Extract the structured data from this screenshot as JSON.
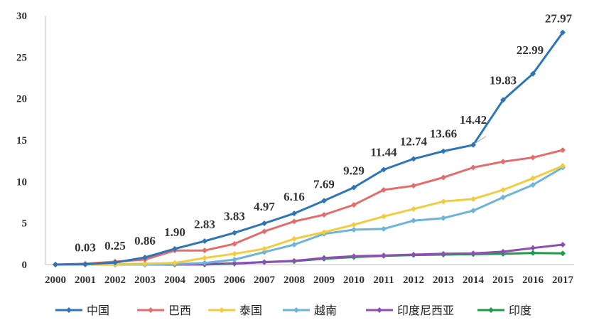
{
  "chart_data": {
    "type": "line",
    "title": "",
    "xlabel": "",
    "ylabel": "",
    "ylim": [
      0,
      30
    ],
    "yticks": [
      "0",
      "5",
      "10",
      "15",
      "20",
      "25",
      "30"
    ],
    "categories": [
      "2000",
      "2001",
      "2002",
      "2003",
      "2004",
      "2005",
      "2006",
      "2007",
      "2008",
      "2009",
      "2010",
      "2011",
      "2012",
      "2013",
      "2014",
      "2015",
      "2016",
      "2017"
    ],
    "legend_position": "bottom",
    "grid": false,
    "series": [
      {
        "name": "中国",
        "color": "#2E75B6",
        "values": [
          0.0,
          0.03,
          0.25,
          0.86,
          1.9,
          2.83,
          3.83,
          4.97,
          6.16,
          7.69,
          9.29,
          11.44,
          12.74,
          13.66,
          14.42,
          19.83,
          22.99,
          27.97
        ],
        "labels": [
          "",
          "0.03",
          "0.25",
          "0.86",
          "1.90",
          "2.83",
          "3.83",
          "4.97",
          "6.16",
          "7.69",
          "9.29",
          "11.44",
          "12.74",
          "13.66",
          "14.42",
          "19.83",
          "22.99",
          "27.97"
        ]
      },
      {
        "name": "巴西",
        "color": "#E46C6C",
        "values": [
          0.0,
          0.1,
          0.35,
          0.6,
          1.7,
          1.7,
          2.5,
          4.0,
          5.2,
          6.0,
          7.2,
          9.0,
          9.5,
          10.5,
          11.7,
          12.4,
          12.9,
          13.8
        ]
      },
      {
        "name": "泰国",
        "color": "#F2CC40",
        "values": [
          0.0,
          0.0,
          0.05,
          0.1,
          0.2,
          0.8,
          1.3,
          1.9,
          3.1,
          3.9,
          4.8,
          5.8,
          6.7,
          7.6,
          7.9,
          9.0,
          10.4,
          11.9
        ]
      },
      {
        "name": "越南",
        "color": "#6DB4D8",
        "values": [
          0.0,
          0.0,
          0.0,
          0.0,
          0.05,
          0.2,
          0.6,
          1.5,
          2.4,
          3.7,
          4.2,
          4.3,
          5.3,
          5.6,
          6.5,
          8.1,
          9.6,
          11.7
        ]
      },
      {
        "name": "印度尼西亚",
        "color": "#8E4FB2",
        "values": [
          0.0,
          0.0,
          0.0,
          0.0,
          0.0,
          0.05,
          0.15,
          0.3,
          0.45,
          0.8,
          1.0,
          1.1,
          1.2,
          1.3,
          1.35,
          1.55,
          2.0,
          2.4
        ]
      },
      {
        "name": "印度",
        "color": "#1E9B4A",
        "values": [
          0.0,
          0.0,
          0.0,
          0.0,
          0.0,
          0.0,
          0.1,
          0.3,
          0.4,
          0.7,
          0.9,
          1.05,
          1.15,
          1.2,
          1.25,
          1.3,
          1.4,
          1.35
        ]
      }
    ]
  }
}
